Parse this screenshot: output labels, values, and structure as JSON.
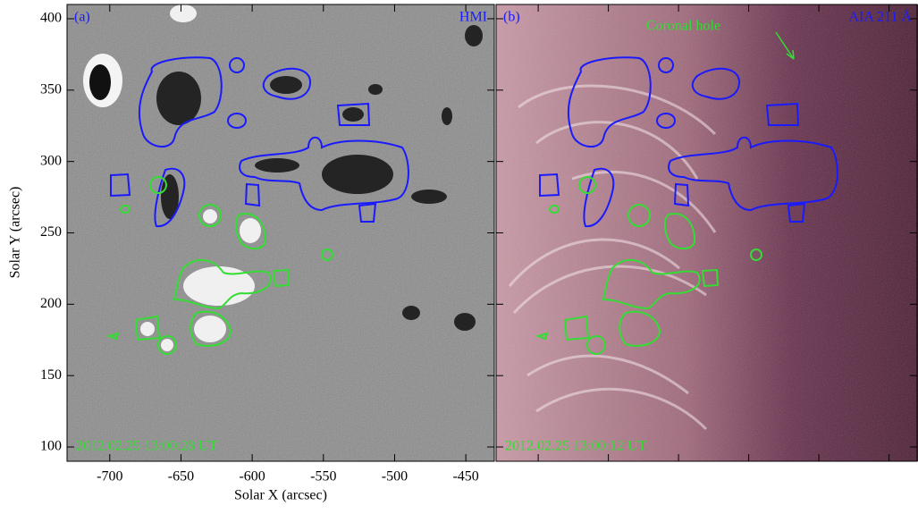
{
  "chart_data": [
    {
      "type": "image",
      "panel_label": "(a)",
      "instrument": "HMI",
      "timestamp": "2012.02.25 13:00:28 UT",
      "xlabel": "Solar X (arcsec)",
      "ylabel": "Solar Y (arcsec)",
      "xlim": [
        -730,
        -430
      ],
      "ylim": [
        90,
        410
      ],
      "xticks": [
        -700,
        -650,
        -600,
        -550,
        -500,
        -450
      ],
      "yticks": [
        100,
        150,
        200,
        250,
        300,
        350,
        400
      ]
    },
    {
      "type": "image",
      "panel_label": "(b)",
      "instrument": "AIA 211 Å",
      "timestamp": "2012.02.25 13:00:12 UT",
      "annotation": "Coronal hole",
      "xlim": [
        -730,
        -430
      ],
      "ylim": [
        90,
        410
      ],
      "xticks": [
        -700,
        -650,
        -600,
        -550,
        -500,
        -450
      ],
      "yticks": [
        100,
        150,
        200,
        250,
        300,
        350,
        400
      ]
    }
  ]
}
